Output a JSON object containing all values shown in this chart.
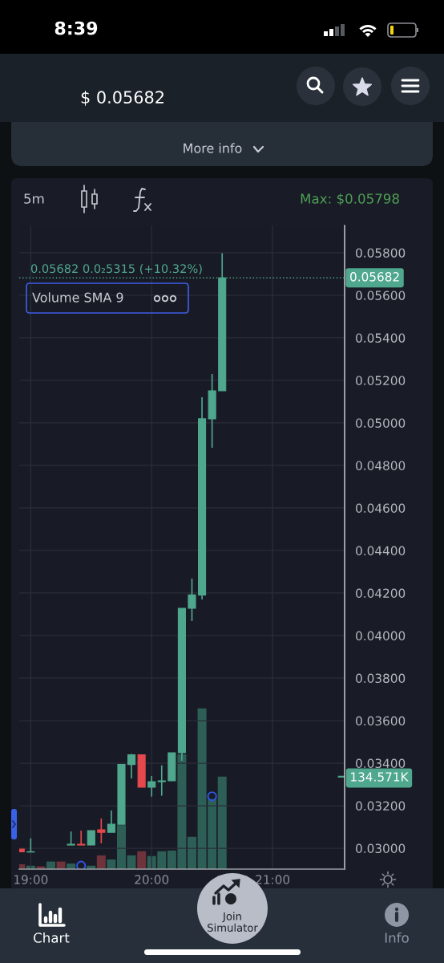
{
  "chart_data": {
    "type": "candlestick",
    "annotations": [
      "8:39",
      "$ 0.05682",
      "More info",
      "5m",
      "Max: $0.05798",
      "0.05682 0.0₂5315 (+10.32%)",
      "Volume SMA 9",
      "Chart",
      "Join\nSimulator",
      "Info"
    ],
    "x": [
      18.9167,
      19,
      19.0833,
      19.1667,
      19.25,
      19.3333,
      19.4167,
      19.5,
      19.5833,
      19.6667,
      19.75,
      19.8333,
      19.9167,
      20,
      20.0833,
      20.1667,
      20.25,
      20.3333,
      20.4167,
      20.5,
      20.5833
    ],
    "xlim": [
      18.905,
      21.596
    ],
    "xticks": [
      {
        "value": 19,
        "label": "19:00"
      },
      {
        "value": 20,
        "label": "20:00"
      },
      {
        "value": 21,
        "label": "21:00"
      }
    ],
    "ylim": [
      0.02902,
      0.05928
    ],
    "yticks": [
      {
        "value": 0.03,
        "label": "0.03000"
      },
      {
        "value": 0.032,
        "label": "0.03200"
      },
      {
        "value": 0.034,
        "label": "0.03400"
      },
      {
        "value": 0.036,
        "label": "0.03600"
      },
      {
        "value": 0.038,
        "label": "0.03800"
      },
      {
        "value": 0.04,
        "label": "0.04000"
      },
      {
        "value": 0.042,
        "label": "0.04200"
      },
      {
        "value": 0.044,
        "label": "0.04400"
      },
      {
        "value": 0.046,
        "label": "0.04600"
      },
      {
        "value": 0.048,
        "label": "0.04800"
      },
      {
        "value": 0.05,
        "label": "0.05000"
      },
      {
        "value": 0.052,
        "label": "0.05200"
      },
      {
        "value": 0.054,
        "label": "0.05400"
      },
      {
        "value": 0.056,
        "label": "0.05600"
      },
      {
        "value": 0.058,
        "label": "0.05800"
      }
    ],
    "y2lim": [
      0,
      937
    ],
    "y2ticks": [
      {
        "value": 134.571,
        "label": "134.571K"
      }
    ],
    "grid": true,
    "ref_lines": [
      {
        "axis": "y",
        "value": 0.05682,
        "label": "0.05682",
        "color": "#4fa78e",
        "line_style": "dotted"
      }
    ],
    "series": [
      {
        "ohlc": [
          [
            0.02996,
            0.02996,
            0.02983,
            0.02983
          ],
          [
            0.02982,
            0.03047,
            0.02982,
            0.02984
          ],
          null,
          null,
          null,
          [
            0.03015,
            0.03079,
            0.03015,
            0.03019
          ],
          [
            0.03019,
            0.03083,
            0.03015,
            0.03015
          ],
          [
            0.03015,
            0.03083,
            0.03015,
            0.03083
          ],
          [
            0.03087,
            0.0314,
            0.03023,
            0.03075
          ],
          [
            0.03075,
            0.03177,
            0.03075,
            0.03113
          ],
          [
            0.03113,
            0.03394,
            0.03113,
            0.03394
          ],
          [
            0.03394,
            0.03443,
            0.03328,
            0.03439
          ],
          [
            0.03439,
            0.03439,
            0.03287,
            0.03287
          ],
          [
            0.03287,
            0.0334,
            0.03243,
            0.03313
          ],
          [
            0.03313,
            0.0339,
            0.03247,
            0.03317
          ],
          [
            0.03317,
            0.03449,
            0.03317,
            0.03449
          ],
          [
            0.03449,
            0.04128,
            0.03411,
            0.04128
          ],
          [
            0.04128,
            0.04268,
            0.04068,
            0.04191
          ],
          [
            0.04191,
            0.05121,
            0.0417,
            0.05019
          ],
          [
            0.05019,
            0.0523,
            0.04883,
            0.05151
          ],
          [
            0.05151,
            0.05798,
            0.05151,
            0.05682
          ]
        ],
        "colors": [
          "#e5484d",
          "#4fa78e",
          null,
          null,
          null,
          "#4fa78e",
          "#e5484d",
          "#4fa78e",
          "#e5484d",
          "#4fa78e",
          "#4fa78e",
          "#4fa78e",
          "#e5484d",
          "#4fa78e",
          "#4fa78e",
          "#4fa78e",
          "#4fa78e",
          "#4fa78e",
          "#4fa78e",
          "#4fa78e",
          "#4fa78e"
        ]
      },
      {
        "type": "bar",
        "axis": "y2",
        "values": [
          7,
          5,
          4,
          11,
          11,
          8,
          null,
          5,
          20,
          14,
          64,
          20,
          26,
          19,
          26,
          27,
          167,
          47,
          234,
          102,
          134.571
        ],
        "colors": [
          "#6e333b",
          "#2d5f56",
          "#6e333b",
          "#2d5f56",
          "#6e333b",
          "#2d5f56",
          "#6e333b",
          "#2d5f56",
          "#6e333b",
          "#2d5f56",
          "#2d5f56",
          "#2d5f56",
          "#6e333b",
          "#2d5f56",
          "#2d5f56",
          "#2d5f56",
          "#2d5f56",
          "#2d5f56",
          "#2d5f56",
          "#2d5f56",
          "#2d5f56"
        ]
      },
      {
        "type": "scatter",
        "axis": "y2",
        "x": [
          19.4167,
          20.5
        ],
        "values": [
          5,
          106
        ],
        "color": "#2f55e4",
        "marker": "circle"
      }
    ]
  }
}
